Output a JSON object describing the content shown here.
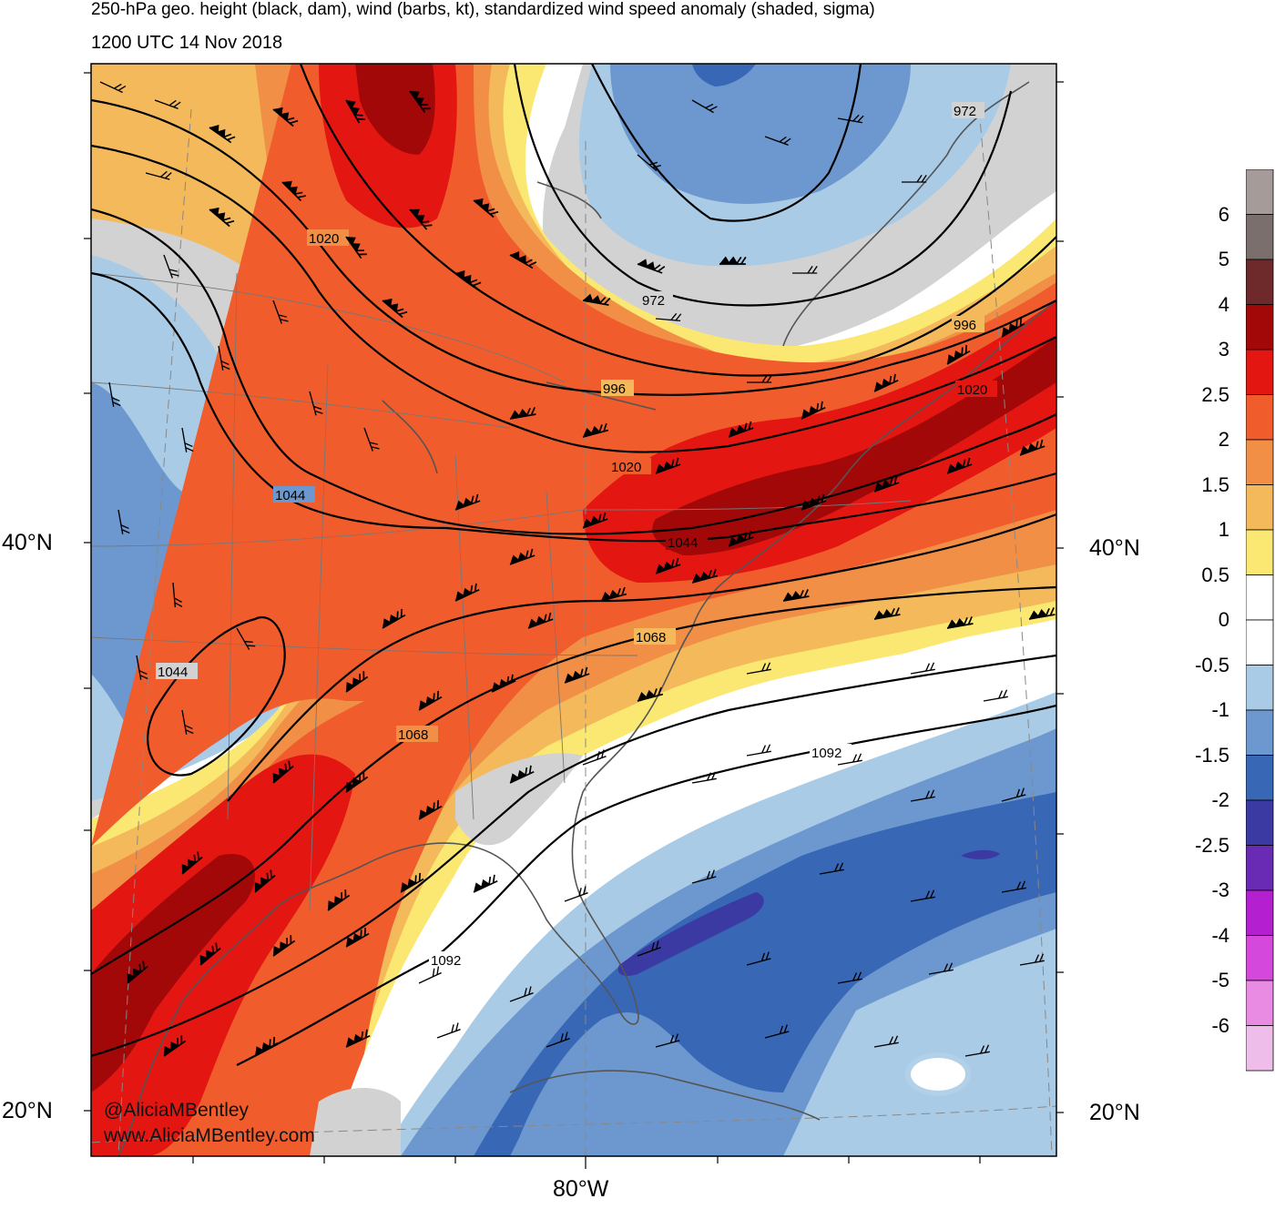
{
  "header": {
    "title": "250-hPa geo. height (black, dam), wind (barbs, kt), standardized wind speed anomaly (shaded, sigma)",
    "time": "1200 UTC 14 Nov 2018"
  },
  "axes": {
    "lat_labels": [
      "40°N",
      "20°N"
    ],
    "lon_labels": [
      "80°W"
    ]
  },
  "contours": {
    "labels": [
      "972",
      "972",
      "996",
      "996",
      "1020",
      "1020",
      "1020",
      "1044",
      "1044",
      "1044",
      "1068",
      "1068",
      "1092",
      "1092"
    ]
  },
  "legend": {
    "labels": [
      "6",
      "5",
      "4",
      "3",
      "2.5",
      "2",
      "1.5",
      "1",
      "0.5",
      "0",
      "-0.5",
      "-1",
      "-1.5",
      "-2",
      "-2.5",
      "-3",
      "-4",
      "-5",
      "-6"
    ],
    "colors": [
      "#a59b99",
      "#7a6f6c",
      "#6e2a2a",
      "#a30808",
      "#e31612",
      "#f15c2c",
      "#f08f45",
      "#f3b95a",
      "#fbe873",
      "#ffffff",
      "#ffffff",
      "#aacbe6",
      "#6d98cf",
      "#3867b5",
      "#3b3aa3",
      "#6a2bb4",
      "#b420d0",
      "#d449db",
      "#e98ae3",
      "#eebde9"
    ]
  },
  "colors": {
    "land_gray": "#d2d2d2",
    "coast": "#555555",
    "contour": "#000000"
  },
  "credits": {
    "handle": "@AliciaMBentley",
    "site": "www.AliciaMBentley.com"
  }
}
